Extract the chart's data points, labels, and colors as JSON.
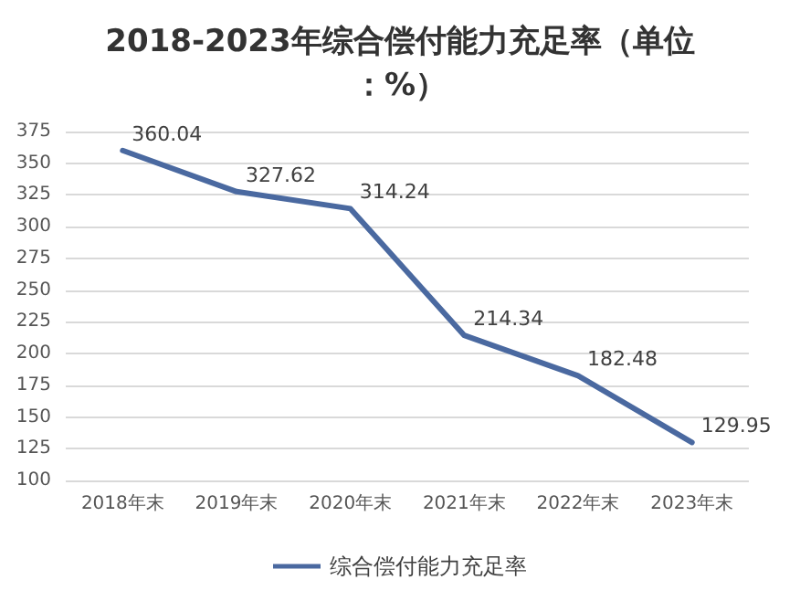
{
  "chart_data": {
    "type": "line",
    "title": "2018-2023年综合偿付能力充足率（单位：%）",
    "categories": [
      "2018年末",
      "2019年末",
      "2020年末",
      "2021年末",
      "2022年末",
      "2023年末"
    ],
    "series": [
      {
        "name": "综合偿付能力充足率",
        "color": "#4a69a0",
        "values": [
          360.04,
          327.62,
          314.24,
          214.34,
          182.48,
          129.95
        ]
      }
    ],
    "ylim": [
      100,
      375
    ],
    "yticks": [
      100,
      125,
      150,
      175,
      200,
      225,
      250,
      275,
      300,
      325,
      350,
      375
    ],
    "grid": "y",
    "legend": "bottom",
    "data_labels": true,
    "marker": "none",
    "line_style": "solid"
  }
}
